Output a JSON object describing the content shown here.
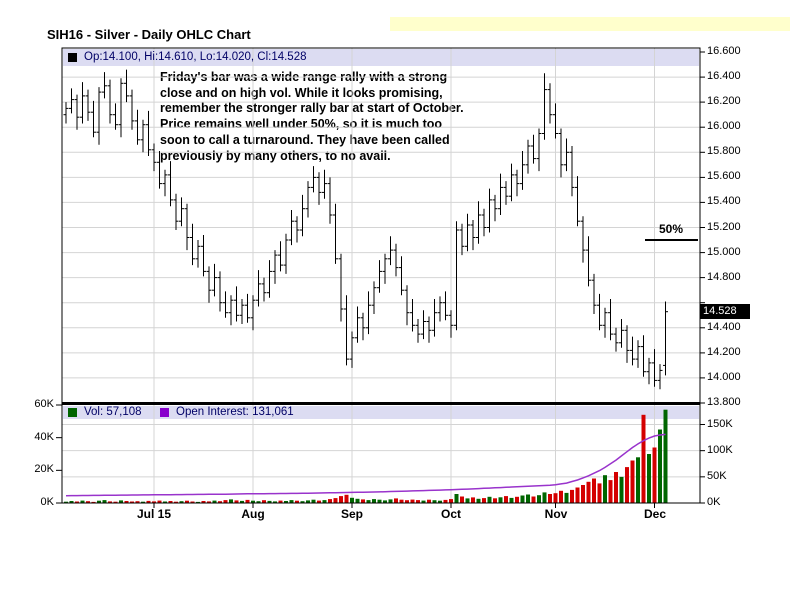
{
  "header": {
    "title": "SIH16 - Silver - Daily OHLC Chart"
  },
  "price_panel": {
    "legend": "Op:14.100, Hi:14.610, Lo:14.020, Cl:14.528",
    "fifty_pct_label": "50%",
    "last_price_label": "14.528",
    "annotation_lines": [
      "Friday's bar was a wide range rally with a strong",
      "close and on high vol.  While it looks promising,",
      "remember the stronger rally bar at start of October.",
      "Price remains well under 50%, so it is much too",
      "soon to call a turnaround.  They have been called",
      "previously by many others, to no avail."
    ],
    "y_tick_labels": [
      "16.600",
      "16.400",
      "16.200",
      "16.000",
      "15.800",
      "15.600",
      "15.400",
      "15.200",
      "15.000",
      "14.800",
      "14.400",
      "14.200",
      "14.000",
      "13.800"
    ]
  },
  "volume_panel": {
    "vol_legend": "Vol: 57,108",
    "oi_legend": "Open Interest: 131,061",
    "left_tick_labels": [
      "60K",
      "40K",
      "20K",
      "0K"
    ],
    "right_tick_labels": [
      "150K",
      "100K",
      "50K",
      "0K"
    ]
  },
  "x_axis": {
    "tick_labels": [
      {
        "label": "Jul 15",
        "index": 16
      },
      {
        "label": "Aug",
        "index": 34
      },
      {
        "label": "Sep",
        "index": 52
      },
      {
        "label": "Oct",
        "index": 70
      },
      {
        "label": "Nov",
        "index": 89
      },
      {
        "label": "Dec",
        "index": 107
      }
    ]
  },
  "colors": {
    "up": "#006600",
    "down": "#d40000",
    "oi_line": "#9933cc",
    "oi_marker": "#8800cc",
    "vol_marker": "#006400",
    "price_marker": "#000000",
    "legend_band": "#dcdcf2",
    "highlight": "#ffffcc",
    "legend_text": "#000066",
    "gridline": "#d4d4d4",
    "last_price_bg": "#000000"
  },
  "chart_data": {
    "type": "ohlc",
    "title": "SIH16 - Silver - Daily OHLC Chart",
    "symbol": "SIH16",
    "legend_position": "top-left",
    "grid": true,
    "price_axis": {
      "side": "right",
      "min": 13.8,
      "max": 16.6,
      "step": 0.2
    },
    "volume_axis_left": {
      "min_k": 0,
      "max_k": 60,
      "step_k": 20
    },
    "volume_axis_right": {
      "min_k": 0,
      "max_k": 150,
      "step_k": 50
    },
    "fifty_pct_level": 15.1,
    "last_bar": {
      "open": 14.1,
      "high": 14.61,
      "low": 14.02,
      "close": 14.528
    },
    "last_volume": 57108,
    "last_open_interest": 131061,
    "bars": [
      [
        16.1,
        16.2,
        16.03,
        16.15
      ],
      [
        16.15,
        16.31,
        16.11,
        16.22
      ],
      [
        16.22,
        16.26,
        15.98,
        16.08
      ],
      [
        16.08,
        16.36,
        16.03,
        16.25
      ],
      [
        16.25,
        16.3,
        16.05,
        16.12
      ],
      [
        16.12,
        16.21,
        15.92,
        15.96
      ],
      [
        15.96,
        16.32,
        15.86,
        16.28
      ],
      [
        16.28,
        16.44,
        16.23,
        16.33
      ],
      [
        16.33,
        16.38,
        16.03,
        16.1
      ],
      [
        16.1,
        16.19,
        15.98,
        16.02
      ],
      [
        16.02,
        16.39,
        15.92,
        16.35
      ],
      [
        16.35,
        16.46,
        16.2,
        16.25
      ],
      [
        16.25,
        16.3,
        15.98,
        16.05
      ],
      [
        16.05,
        16.14,
        15.86,
        15.9
      ],
      [
        15.9,
        16.06,
        15.8,
        16.02
      ],
      [
        16.02,
        16.13,
        15.77,
        15.82
      ],
      [
        15.82,
        15.87,
        15.65,
        15.72
      ],
      [
        15.72,
        15.81,
        15.51,
        15.55
      ],
      [
        15.55,
        15.66,
        15.45,
        15.62
      ],
      [
        15.62,
        15.73,
        15.37,
        15.42
      ],
      [
        15.42,
        15.47,
        15.18,
        15.25
      ],
      [
        15.25,
        15.44,
        15.21,
        15.35
      ],
      [
        15.35,
        15.39,
        15.02,
        15.12
      ],
      [
        15.12,
        15.23,
        14.9,
        14.95
      ],
      [
        14.95,
        15.1,
        14.88,
        15.05
      ],
      [
        15.05,
        15.14,
        14.81,
        14.85
      ],
      [
        14.85,
        14.89,
        14.6,
        14.7
      ],
      [
        14.7,
        14.91,
        14.65,
        14.8
      ],
      [
        14.8,
        14.85,
        14.53,
        14.6
      ],
      [
        14.6,
        14.69,
        14.48,
        14.52
      ],
      [
        14.52,
        14.66,
        14.42,
        14.62
      ],
      [
        14.62,
        14.73,
        14.45,
        14.5
      ],
      [
        14.5,
        14.63,
        14.43,
        14.58
      ],
      [
        14.58,
        14.67,
        14.44,
        14.48
      ],
      [
        14.48,
        14.66,
        14.38,
        14.62
      ],
      [
        14.62,
        14.86,
        14.57,
        14.75
      ],
      [
        14.75,
        14.8,
        14.61,
        14.68
      ],
      [
        14.68,
        14.94,
        14.64,
        14.85
      ],
      [
        14.85,
        15.02,
        14.75,
        14.98
      ],
      [
        14.98,
        15.09,
        14.85,
        14.9
      ],
      [
        14.9,
        15.15,
        14.83,
        15.1
      ],
      [
        15.1,
        15.34,
        15.06,
        15.25
      ],
      [
        15.25,
        15.29,
        15.08,
        15.18
      ],
      [
        15.18,
        15.46,
        15.13,
        15.35
      ],
      [
        15.35,
        15.57,
        15.28,
        15.52
      ],
      [
        15.52,
        15.69,
        15.48,
        15.6
      ],
      [
        15.6,
        15.64,
        15.38,
        15.48
      ],
      [
        15.48,
        15.66,
        15.43,
        15.55
      ],
      [
        15.55,
        15.6,
        15.23,
        15.3
      ],
      [
        15.3,
        15.39,
        14.91,
        14.95
      ],
      [
        14.95,
        14.99,
        14.45,
        14.55
      ],
      [
        14.55,
        14.66,
        14.1,
        14.15
      ],
      [
        14.15,
        14.37,
        14.08,
        14.32
      ],
      [
        14.32,
        14.57,
        14.28,
        14.48
      ],
      [
        14.48,
        14.52,
        14.3,
        14.4
      ],
      [
        14.4,
        14.69,
        14.35,
        14.58
      ],
      [
        14.58,
        14.77,
        14.51,
        14.72
      ],
      [
        14.72,
        14.94,
        14.68,
        14.85
      ],
      [
        14.85,
        14.99,
        14.75,
        14.95
      ],
      [
        14.95,
        15.13,
        14.9,
        15.02
      ],
      [
        15.02,
        15.07,
        14.81,
        14.88
      ],
      [
        14.88,
        14.97,
        14.66,
        14.7
      ],
      [
        14.7,
        14.74,
        14.42,
        14.52
      ],
      [
        14.52,
        14.63,
        14.37,
        14.42
      ],
      [
        14.42,
        14.47,
        14.28,
        14.35
      ],
      [
        14.35,
        14.54,
        14.31,
        14.45
      ],
      [
        14.45,
        14.49,
        14.28,
        14.38
      ],
      [
        14.38,
        14.63,
        14.33,
        14.52
      ],
      [
        14.52,
        14.65,
        14.45,
        14.6
      ],
      [
        14.6,
        14.69,
        14.46,
        14.5
      ],
      [
        14.5,
        14.54,
        14.32,
        14.42
      ],
      [
        14.42,
        15.25,
        14.38,
        15.18
      ],
      [
        15.18,
        15.23,
        14.98,
        15.05
      ],
      [
        15.05,
        15.31,
        15.01,
        15.22
      ],
      [
        15.22,
        15.26,
        15.02,
        15.12
      ],
      [
        15.12,
        15.41,
        15.07,
        15.3
      ],
      [
        15.3,
        15.35,
        15.13,
        15.2
      ],
      [
        15.2,
        15.51,
        15.16,
        15.42
      ],
      [
        15.42,
        15.46,
        15.25,
        15.35
      ],
      [
        15.35,
        15.63,
        15.3,
        15.52
      ],
      [
        15.52,
        15.57,
        15.38,
        15.45
      ],
      [
        15.45,
        15.71,
        15.41,
        15.62
      ],
      [
        15.62,
        15.66,
        15.45,
        15.55
      ],
      [
        15.55,
        15.81,
        15.5,
        15.7
      ],
      [
        15.7,
        15.9,
        15.63,
        15.85
      ],
      [
        15.85,
        15.94,
        15.71,
        15.75
      ],
      [
        15.75,
        15.99,
        15.65,
        15.95
      ],
      [
        15.95,
        16.43,
        15.9,
        16.3
      ],
      [
        16.3,
        16.35,
        16.03,
        16.1
      ],
      [
        16.1,
        16.19,
        15.91,
        15.95
      ],
      [
        15.95,
        15.99,
        15.6,
        15.7
      ],
      [
        15.7,
        15.91,
        15.65,
        15.8
      ],
      [
        15.8,
        15.85,
        15.45,
        15.52
      ],
      [
        15.52,
        15.61,
        15.21,
        15.25
      ],
      [
        15.25,
        15.29,
        14.92,
        15.02
      ],
      [
        15.02,
        15.13,
        14.73,
        14.78
      ],
      [
        14.78,
        14.83,
        14.51,
        14.58
      ],
      [
        14.58,
        14.67,
        14.38,
        14.42
      ],
      [
        14.42,
        14.56,
        14.32,
        14.52
      ],
      [
        14.52,
        14.63,
        14.3,
        14.35
      ],
      [
        14.35,
        14.4,
        14.21,
        14.28
      ],
      [
        14.28,
        14.47,
        14.24,
        14.38
      ],
      [
        14.38,
        14.42,
        14.12,
        14.22
      ],
      [
        14.22,
        14.33,
        14.1,
        14.15
      ],
      [
        14.15,
        14.3,
        14.08,
        14.25
      ],
      [
        14.25,
        14.34,
        14.01,
        14.05
      ],
      [
        14.05,
        14.16,
        13.95,
        14.12
      ],
      [
        14.12,
        14.23,
        13.93,
        13.98
      ],
      [
        13.98,
        14.11,
        13.91,
        14.06
      ],
      [
        14.1,
        14.61,
        14.02,
        14.528
      ]
    ],
    "volume_k": [
      0.8,
      1.2,
      0.9,
      1.5,
      1.1,
      0.7,
      1.4,
      1.8,
      1.0,
      0.8,
      1.6,
      1.2,
      0.9,
      1.1,
      0.8,
      1.3,
      1.0,
      1.5,
      0.9,
      1.2,
      0.8,
      1.1,
      1.4,
      0.9,
      0.7,
      1.2,
      1.0,
      1.5,
      1.1,
      1.8,
      2.2,
      1.6,
      1.3,
      1.9,
      1.4,
      1.1,
      1.7,
      1.3,
      1.0,
      1.5,
      1.2,
      1.8,
      1.4,
      1.1,
      1.6,
      2.0,
      1.5,
      1.8,
      2.4,
      3.0,
      4.2,
      5.0,
      3.2,
      2.6,
      2.2,
      1.8,
      2.4,
      2.0,
      1.6,
      2.2,
      2.8,
      2.0,
      1.7,
      2.1,
      1.8,
      1.5,
      2.0,
      1.7,
      1.4,
      1.9,
      2.4,
      5.5,
      4.0,
      2.8,
      3.4,
      2.6,
      3.0,
      3.8,
      2.9,
      3.5,
      4.2,
      3.1,
      3.8,
      4.6,
      5.2,
      4.0,
      4.8,
      6.5,
      5.5,
      6.0,
      7.5,
      6.2,
      8.0,
      9.5,
      11.0,
      13.0,
      15.0,
      12.0,
      17.0,
      14.0,
      19.0,
      16.0,
      22.0,
      26.0,
      28.0,
      54.0,
      30.0,
      34.0,
      45.0,
      57.1
    ],
    "open_interest_k": [
      14.0,
      14.1,
      14.2,
      14.3,
      14.4,
      14.5,
      14.6,
      14.7,
      14.8,
      14.9,
      15.0,
      15.1,
      15.2,
      15.3,
      15.4,
      15.5,
      15.6,
      15.7,
      15.8,
      15.9,
      16.0,
      16.1,
      16.2,
      16.3,
      16.4,
      16.5,
      16.6,
      16.7,
      16.8,
      16.9,
      17.0,
      17.2,
      17.4,
      17.5,
      17.6,
      17.7,
      17.8,
      17.9,
      18.0,
      18.1,
      18.2,
      18.3,
      18.4,
      18.5,
      18.7,
      18.9,
      19.1,
      19.3,
      19.5,
      19.7,
      19.9,
      20.0,
      20.2,
      20.4,
      20.6,
      20.8,
      21.0,
      21.3,
      21.6,
      21.9,
      22.2,
      22.5,
      22.8,
      23.1,
      23.4,
      23.7,
      24.0,
      24.3,
      24.6,
      25.0,
      25.4,
      25.8,
      26.2,
      26.6,
      27.0,
      27.5,
      28.0,
      28.5,
      29.0,
      29.5,
      30.0,
      30.5,
      31.0,
      31.5,
      32.0,
      32.5,
      33.0,
      33.5,
      34.0,
      35.0,
      36.5,
      38.0,
      41.0,
      44.0,
      48.0,
      52.0,
      57.0,
      62.0,
      68.0,
      75.0,
      82.0,
      90.0,
      98.0,
      106.0,
      113.0,
      119.0,
      124.0,
      128.0,
      130.0,
      131.1
    ]
  }
}
